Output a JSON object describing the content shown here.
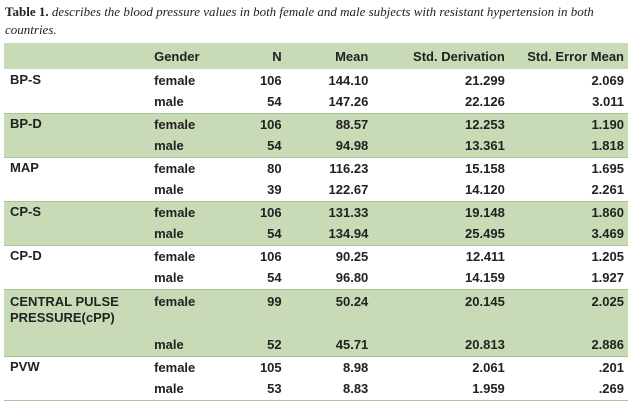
{
  "caption": {
    "label": "Table 1.",
    "text": "describes the blood pressure values in both female and male subjects with resistant hypertension in both countries."
  },
  "table": {
    "headers": [
      "",
      "Gender",
      "N",
      "Mean",
      "Std. Derivation",
      "Std. Error Mean"
    ],
    "groups": [
      {
        "label": "BP-S",
        "rows": [
          {
            "gender": "female",
            "n": "106",
            "mean": "144.10",
            "std": "21.299",
            "sem": "2.069"
          },
          {
            "gender": "male",
            "n": "54",
            "mean": "147.26",
            "std": "22.126",
            "sem": "3.011"
          }
        ]
      },
      {
        "label": "BP-D",
        "rows": [
          {
            "gender": "female",
            "n": "106",
            "mean": "88.57",
            "std": "12.253",
            "sem": "1.190"
          },
          {
            "gender": "male",
            "n": "54",
            "mean": "94.98",
            "std": "13.361",
            "sem": "1.818"
          }
        ]
      },
      {
        "label": "MAP",
        "rows": [
          {
            "gender": "female",
            "n": "80",
            "mean": "116.23",
            "std": "15.158",
            "sem": "1.695"
          },
          {
            "gender": "male",
            "n": "39",
            "mean": "122.67",
            "std": "14.120",
            "sem": "2.261"
          }
        ]
      },
      {
        "label": "CP-S",
        "rows": [
          {
            "gender": "female",
            "n": "106",
            "mean": "131.33",
            "std": "19.148",
            "sem": "1.860"
          },
          {
            "gender": "male",
            "n": "54",
            "mean": "134.94",
            "std": "25.495",
            "sem": "3.469"
          }
        ]
      },
      {
        "label": "CP-D",
        "rows": [
          {
            "gender": "female",
            "n": "106",
            "mean": "90.25",
            "std": "12.411",
            "sem": "1.205"
          },
          {
            "gender": "male",
            "n": "54",
            "mean": "96.80",
            "std": "14.159",
            "sem": "1.927"
          }
        ]
      },
      {
        "label": "CENTRAL PULSE PRESSURE(cPP)",
        "rows": [
          {
            "gender": "female",
            "n": "99",
            "mean": "50.24",
            "std": "20.145",
            "sem": "2.025"
          },
          {
            "gender": "male",
            "n": "52",
            "mean": "45.71",
            "std": "20.813",
            "sem": "2.886"
          }
        ]
      },
      {
        "label": "PVW",
        "rows": [
          {
            "gender": "female",
            "n": "105",
            "mean": "8.98",
            "std": "2.061",
            "sem": ".201"
          },
          {
            "gender": "male",
            "n": "53",
            "mean": "8.83",
            "std": "1.959",
            "sem": ".269"
          }
        ]
      }
    ]
  }
}
